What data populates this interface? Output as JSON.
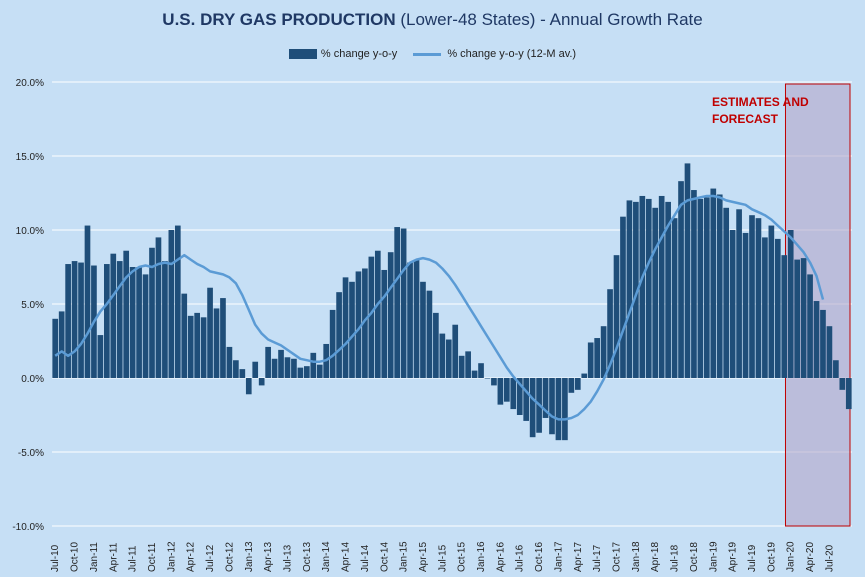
{
  "chart_data": {
    "type": "bar",
    "title_bold": "U.S. DRY GAS PRODUCTION",
    "title_rest": " (Lower-48 States) - Annual Growth Rate",
    "series": [
      {
        "name": "% change y-o-y",
        "kind": "bar",
        "color": "#1f4e79"
      },
      {
        "name": "% change y-o-y (12-M av.)",
        "kind": "line",
        "color": "#5b9bd5"
      }
    ],
    "ylim": [
      -10,
      20
    ],
    "y_ticks": [
      20,
      15,
      10,
      5,
      0,
      -5,
      -10
    ],
    "y_tick_labels": [
      "20.0%",
      "15.0%",
      "10.0%",
      "5.0%",
      "0.0%",
      "-5.0%",
      "-10.0%"
    ],
    "x_tick_labels": [
      "Jul-10",
      "Oct-10",
      "Jan-11",
      "Apr-11",
      "Jul-11",
      "Oct-11",
      "Jan-12",
      "Apr-12",
      "Jul-12",
      "Oct-12",
      "Jan-13",
      "Apr-13",
      "Jul-13",
      "Oct-13",
      "Jan-14",
      "Apr-14",
      "Jul-14",
      "Oct-14",
      "Jan-15",
      "Apr-15",
      "Jul-15",
      "Oct-15",
      "Jan-16",
      "Apr-16",
      "Jul-16",
      "Oct-16",
      "Jan-17",
      "Apr-17",
      "Jul-17",
      "Oct-17",
      "Jan-18",
      "Apr-18",
      "Jul-18",
      "Oct-18",
      "Jan-19",
      "Apr-19",
      "Jul-19",
      "Oct-19",
      "Jan-20",
      "Apr-20",
      "Jul-20"
    ],
    "bar_values": [
      4.0,
      4.5,
      7.7,
      7.9,
      7.8,
      10.3,
      7.6,
      2.9,
      7.7,
      8.4,
      7.9,
      8.6,
      7.5,
      7.5,
      7.0,
      8.8,
      9.5,
      7.9,
      10.0,
      10.3,
      5.7,
      4.2,
      4.4,
      4.1,
      6.1,
      4.7,
      5.4,
      2.1,
      1.2,
      0.6,
      -1.1,
      1.1,
      -0.5,
      2.1,
      1.3,
      1.9,
      1.4,
      1.3,
      0.7,
      0.8,
      1.7,
      0.9,
      2.3,
      4.6,
      5.8,
      6.8,
      6.5,
      7.2,
      7.4,
      8.2,
      8.6,
      7.3,
      8.5,
      10.2,
      10.1,
      7.8,
      8.0,
      6.5,
      5.9,
      4.4,
      3.0,
      2.6,
      3.6,
      1.5,
      1.8,
      0.5,
      1.0,
      0.0,
      -0.5,
      -1.8,
      -1.6,
      -2.1,
      -2.5,
      -2.9,
      -4.0,
      -3.7,
      -2.7,
      -3.8,
      -4.2,
      -4.2,
      -1.0,
      -0.8,
      0.3,
      2.4,
      2.7,
      3.5,
      6.0,
      8.3,
      10.9,
      12.0,
      11.9,
      12.3,
      12.1,
      11.5,
      12.3,
      11.9,
      10.8,
      13.3,
      14.5,
      12.7,
      12.1,
      12.2,
      12.8,
      12.4,
      11.5,
      10.0,
      11.4,
      9.8,
      11.0,
      10.8,
      9.5,
      10.3,
      9.4,
      8.3,
      10.0,
      8.0,
      8.1,
      7.0,
      5.2,
      4.6,
      3.5,
      1.2,
      -0.8,
      -2.1
    ],
    "line_values": [
      1.5,
      1.8,
      1.5,
      1.8,
      2.3,
      3.0,
      3.8,
      4.5,
      5.0,
      5.6,
      6.2,
      6.8,
      7.2,
      7.5,
      7.6,
      7.5,
      7.7,
      7.8,
      7.7,
      8.0,
      8.3,
      8.0,
      7.7,
      7.5,
      7.2,
      7.1,
      7.0,
      6.8,
      6.4,
      5.6,
      4.6,
      3.6,
      3.0,
      2.6,
      2.4,
      2.2,
      1.9,
      1.6,
      1.3,
      1.2,
      1.1,
      1.1,
      1.2,
      1.5,
      1.9,
      2.3,
      2.8,
      3.3,
      3.9,
      4.4,
      5.0,
      5.5,
      6.1,
      6.7,
      7.3,
      7.8,
      8.0,
      8.1,
      8.0,
      7.8,
      7.4,
      6.9,
      6.3,
      5.6,
      4.9,
      4.2,
      3.5,
      2.8,
      2.1,
      1.4,
      0.7,
      0.1,
      -0.4,
      -0.9,
      -1.4,
      -1.8,
      -2.2,
      -2.6,
      -2.8,
      -2.8,
      -2.7,
      -2.5,
      -2.1,
      -1.6,
      -0.9,
      -0.1,
      0.9,
      2.0,
      3.2,
      4.4,
      5.6,
      6.8,
      7.8,
      8.7,
      9.5,
      10.3,
      11.0,
      11.7,
      12.0,
      12.1,
      12.2,
      12.3,
      12.3,
      12.2,
      12.0,
      11.9,
      11.8,
      11.7,
      11.4,
      11.2,
      11.0,
      10.7,
      10.3,
      9.9,
      9.5,
      9.0,
      8.5,
      7.8,
      6.9,
      5.3
    ],
    "forecast_label_line1": "ESTIMATES AND",
    "forecast_label_line2": "FORECAST",
    "forecast_start_index": 114,
    "colors": {
      "bar": "#1f4e79",
      "line": "#5b9bd5",
      "forecast_border": "#c00000",
      "forecast_fill": "#b4a7c9",
      "background": "#c6dff5"
    }
  }
}
